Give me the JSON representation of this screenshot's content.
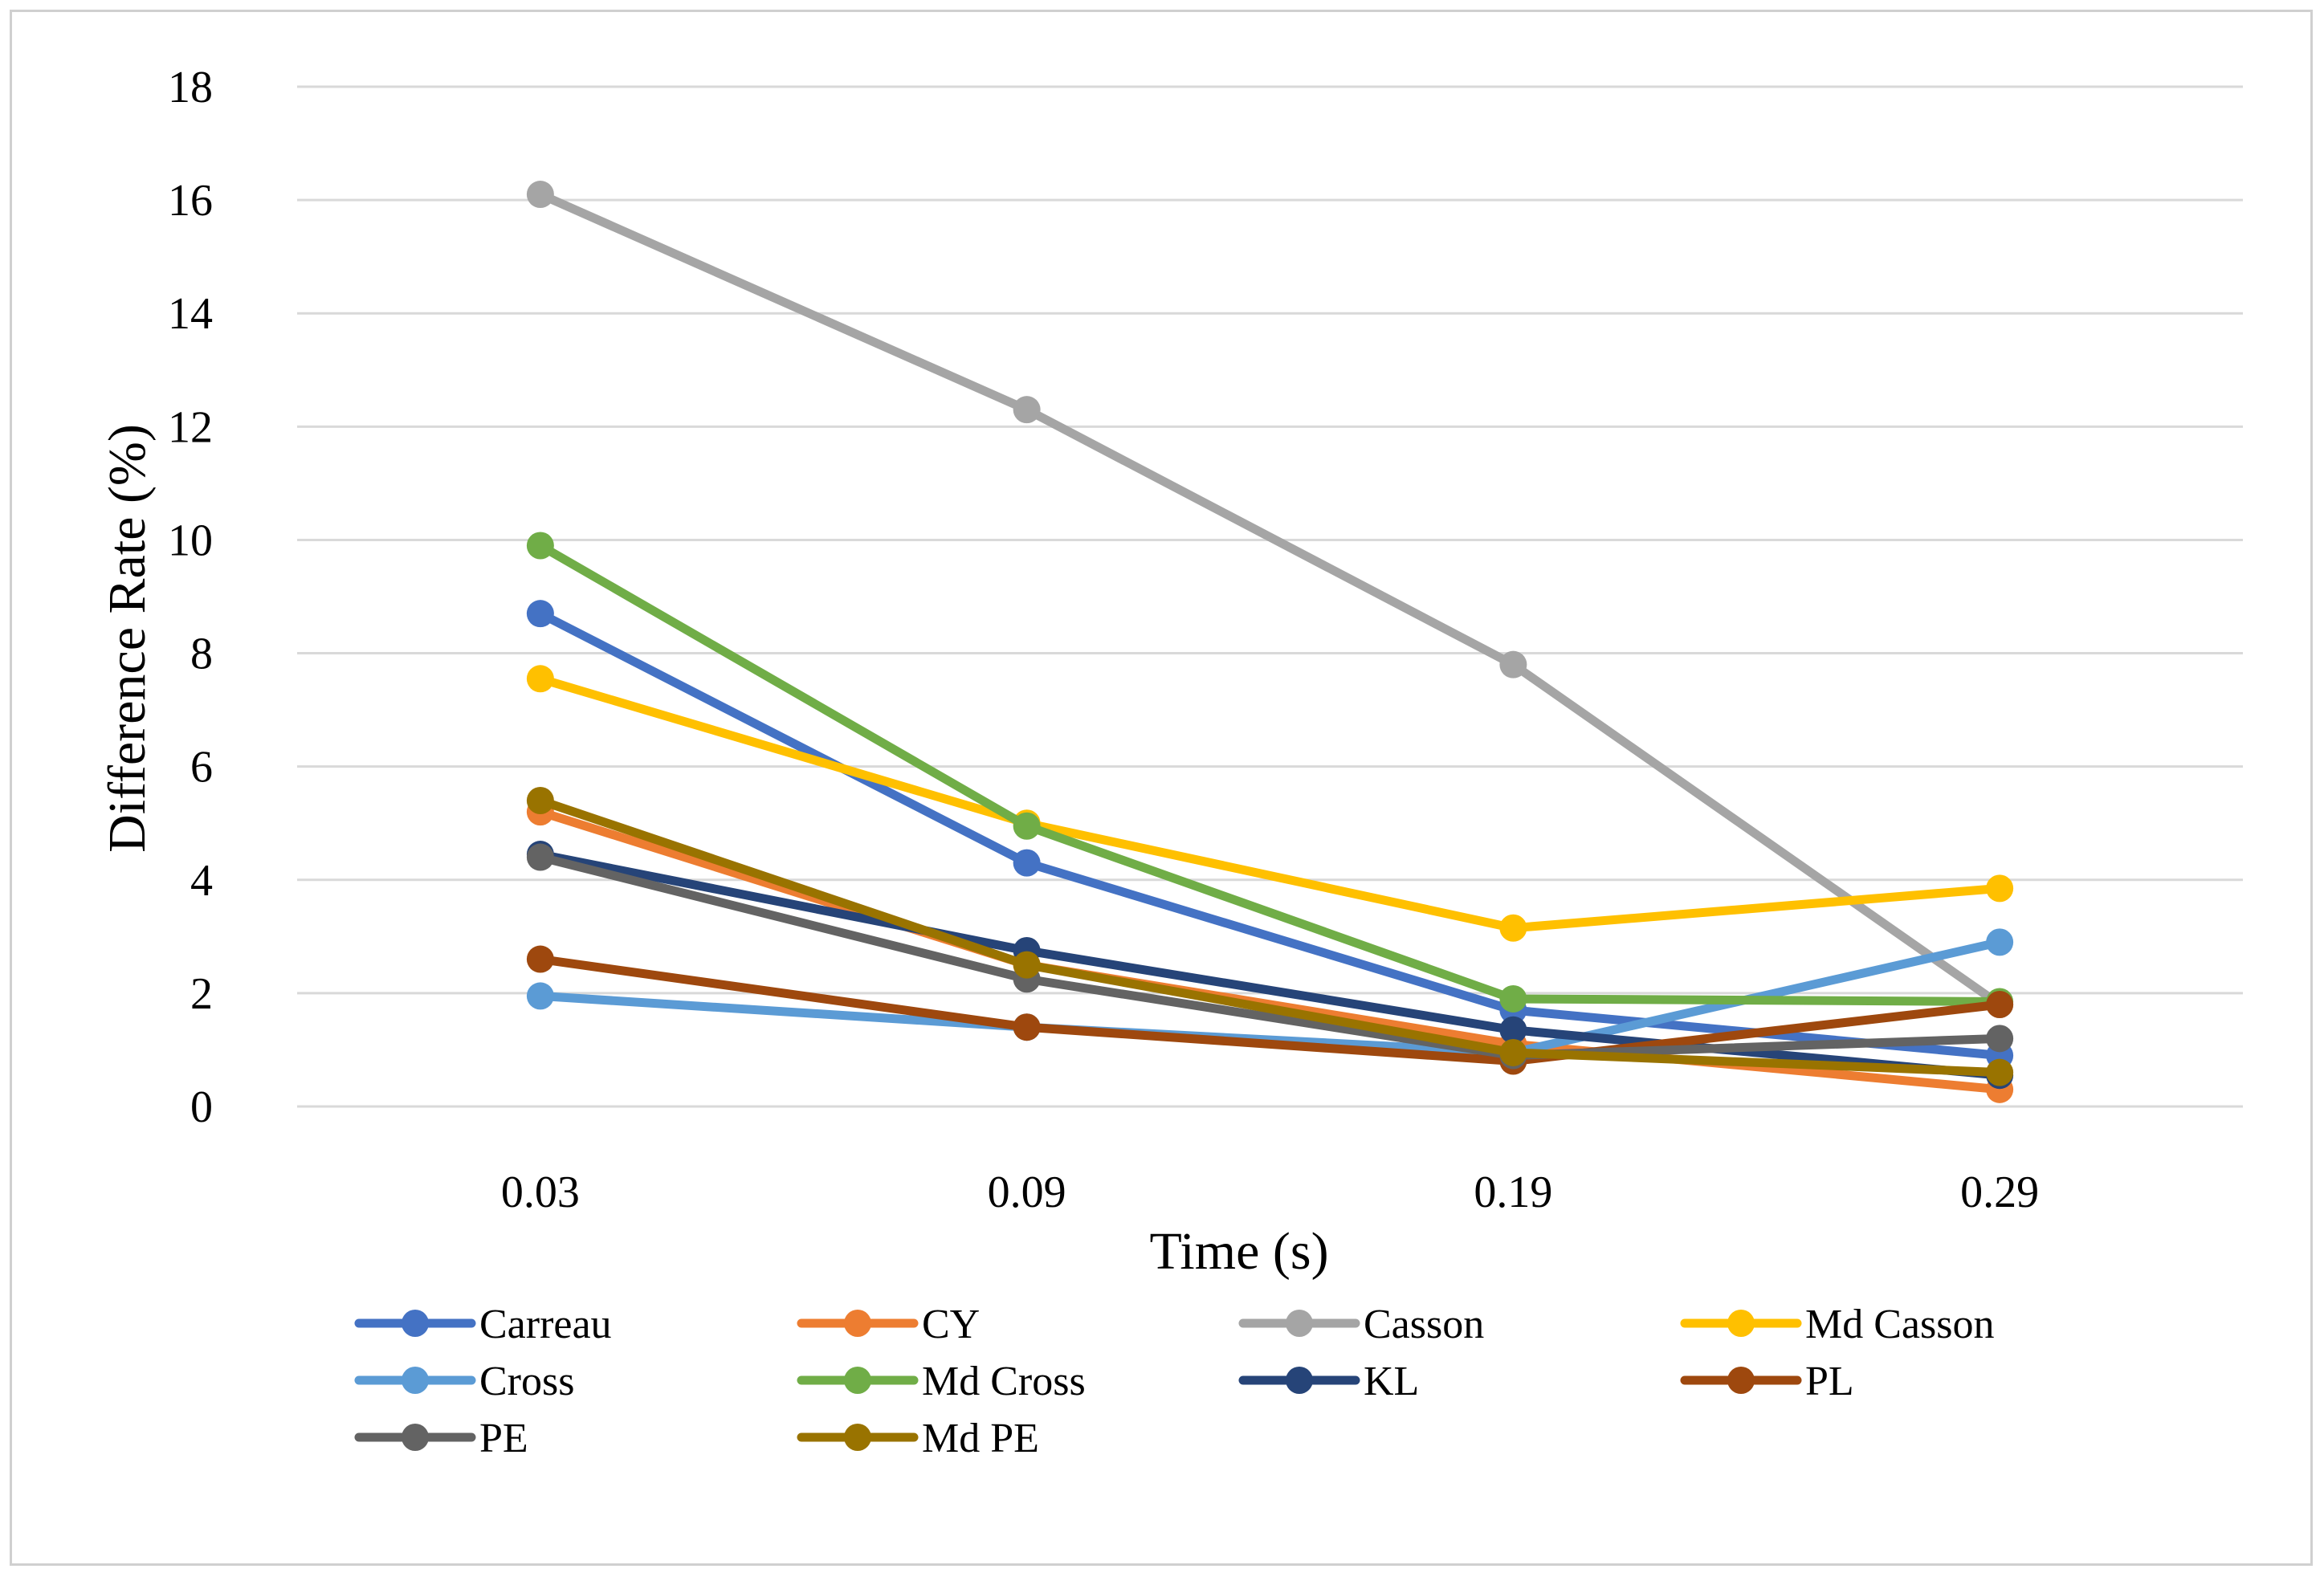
{
  "chart_data": {
    "type": "line",
    "xlabel": "Time (s)",
    "ylabel": "Difference Rate (%)",
    "categories": [
      "0.03",
      "0.09",
      "0.19",
      "0.29"
    ],
    "ylim": [
      0,
      18
    ],
    "yticks": [
      0,
      2,
      4,
      6,
      8,
      10,
      12,
      14,
      16,
      18
    ],
    "grid": "horizontal",
    "legend_position": "bottom",
    "series": [
      {
        "name": "Carreau",
        "color": "#4472C4",
        "values": [
          8.7,
          4.3,
          1.7,
          0.9
        ]
      },
      {
        "name": "CY",
        "color": "#ED7D31",
        "values": [
          5.2,
          2.5,
          1.1,
          0.3
        ]
      },
      {
        "name": "Casson",
        "color": "#A5A5A5",
        "values": [
          16.1,
          12.3,
          7.8,
          1.8
        ]
      },
      {
        "name": "Md Casson",
        "color": "#FFC000",
        "values": [
          7.55,
          5.0,
          3.15,
          3.85
        ]
      },
      {
        "name": "Cross",
        "color": "#5B9BD5",
        "values": [
          1.95,
          1.4,
          0.95,
          2.9
        ]
      },
      {
        "name": "Md Cross",
        "color": "#70AD47",
        "values": [
          9.9,
          4.95,
          1.9,
          1.85
        ]
      },
      {
        "name": "KL",
        "color": "#264478",
        "values": [
          4.45,
          2.75,
          1.35,
          0.55
        ]
      },
      {
        "name": "PL",
        "color": "#9E480E",
        "values": [
          2.6,
          1.4,
          0.8,
          1.8
        ]
      },
      {
        "name": "PE",
        "color": "#636363",
        "values": [
          4.4,
          2.25,
          0.9,
          1.2
        ]
      },
      {
        "name": "Md PE",
        "color": "#997300",
        "values": [
          5.4,
          2.5,
          0.95,
          0.6
        ]
      }
    ]
  }
}
